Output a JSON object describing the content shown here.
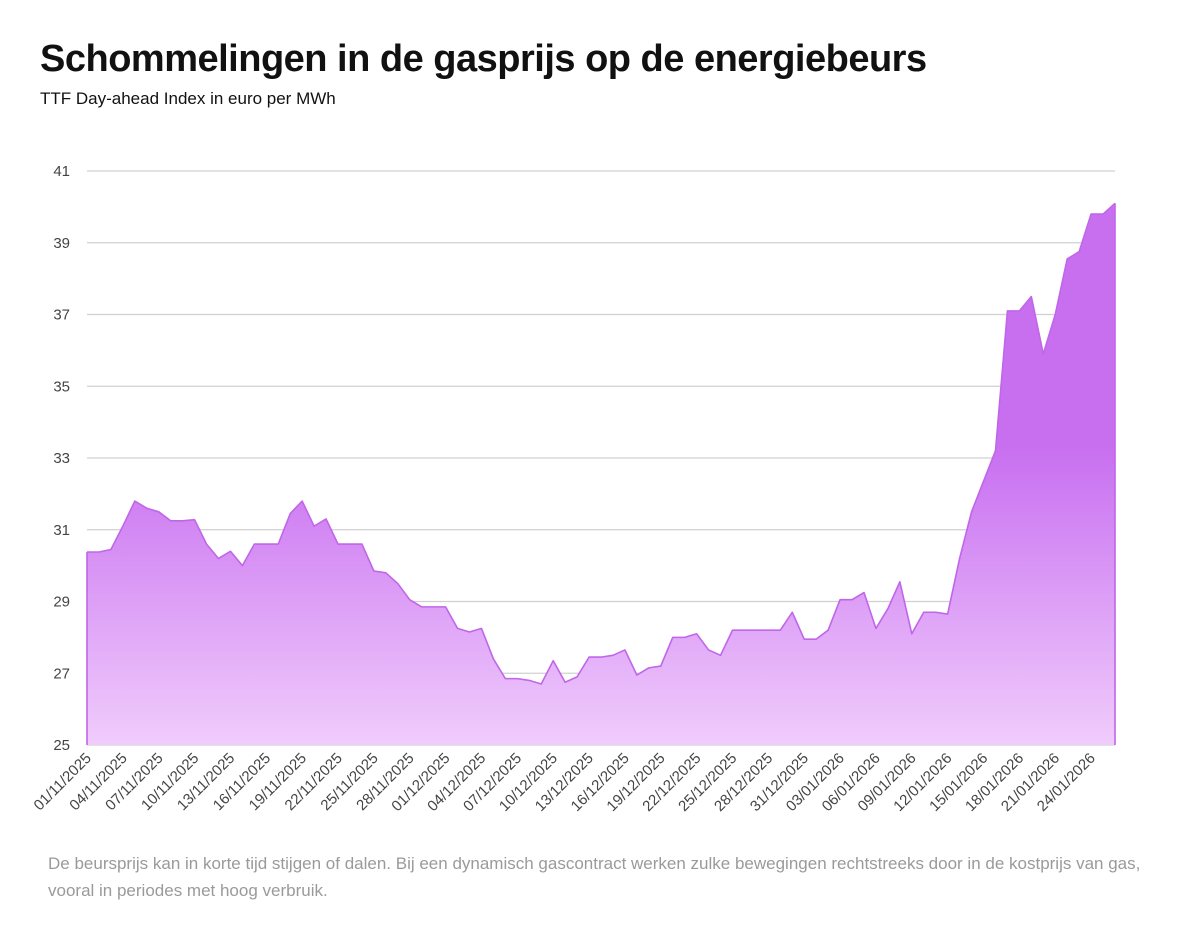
{
  "header": {
    "title": "Schommelingen in de gasprijs op de energiebeurs",
    "subtitle": "TTF Day-ahead Index in euro per MWh"
  },
  "footnote": "De beursprijs kan in korte tijd stijgen of dalen. Bij een dynamisch gascontract werken zulke bewegingen rechtstreeks door in de kostprijs van gas, vooral in periodes met hoog verbruik.",
  "colors": {
    "area_top": "#c86ff0",
    "area_bottom": "#f0ccfc",
    "line": "#c066e8",
    "grid": "#d0d0d0"
  },
  "chart_data": {
    "type": "area",
    "title": "Schommelingen in de gasprijs op de energiebeurs",
    "subtitle": "TTF Day-ahead Index in euro per MWh",
    "ylim": [
      25,
      41
    ],
    "yticks": [
      25,
      27,
      29,
      31,
      33,
      35,
      37,
      39,
      41
    ],
    "grid": true,
    "x_tick_labels": [
      "01/11/2025",
      "04/11/2025",
      "07/11/2025",
      "10/11/2025",
      "13/11/2025",
      "16/11/2025",
      "19/11/2025",
      "22/11/2025",
      "25/11/2025",
      "28/11/2025",
      "01/12/2025",
      "04/12/2025",
      "07/12/2025",
      "10/12/2025",
      "13/12/2025",
      "16/12/2025",
      "19/12/2025",
      "22/12/2025",
      "25/12/2025",
      "28/12/2025",
      "31/12/2025",
      "03/01/2026",
      "06/01/2026",
      "09/01/2026",
      "12/01/2026",
      "15/01/2026",
      "18/01/2026",
      "21/01/2026",
      "24/01/2026"
    ],
    "x_start": "01/11/2025",
    "x_end": "27/01/2026",
    "values": [
      30.38,
      30.38,
      30.45,
      31.1,
      31.8,
      31.6,
      31.5,
      31.25,
      31.25,
      31.28,
      30.6,
      30.2,
      30.4,
      30.0,
      30.6,
      30.6,
      30.6,
      31.45,
      31.8,
      31.1,
      31.3,
      30.6,
      30.6,
      30.6,
      29.85,
      29.8,
      29.5,
      29.05,
      28.85,
      28.85,
      28.85,
      28.25,
      28.15,
      28.25,
      27.4,
      26.85,
      26.85,
      26.8,
      26.7,
      27.35,
      26.75,
      26.9,
      27.45,
      27.45,
      27.5,
      27.65,
      26.95,
      27.15,
      27.2,
      28.0,
      28.0,
      28.1,
      27.65,
      27.5,
      28.2,
      28.2,
      28.2,
      28.2,
      28.2,
      28.7,
      27.95,
      27.95,
      28.2,
      29.05,
      29.05,
      29.25,
      28.25,
      28.8,
      29.55,
      28.1,
      28.7,
      28.7,
      28.65,
      30.2,
      31.5,
      32.35,
      33.2,
      37.1,
      37.1,
      37.5,
      35.9,
      37.0,
      38.55,
      38.75,
      39.8,
      39.8,
      40.1
    ]
  }
}
